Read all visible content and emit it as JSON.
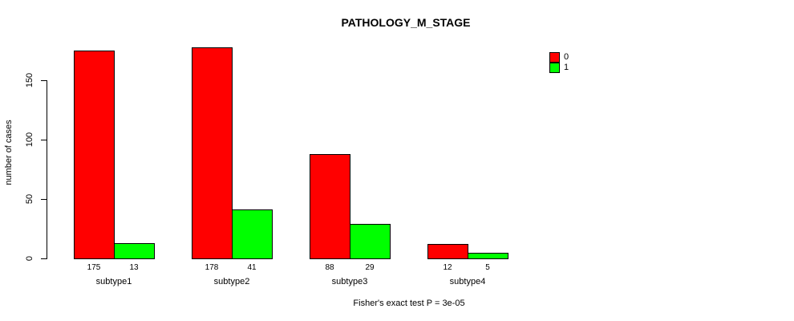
{
  "chart_data": {
    "type": "bar",
    "title": "PATHOLOGY_M_STAGE",
    "xlabel": "",
    "ylabel": "number of cases",
    "categories": [
      "subtype1",
      "subtype2",
      "subtype3",
      "subtype4"
    ],
    "series": [
      {
        "name": "0",
        "color": "#ff0000",
        "values": [
          175,
          178,
          88,
          12
        ]
      },
      {
        "name": "1",
        "color": "#00ff00",
        "values": [
          13,
          41,
          29,
          5
        ]
      }
    ],
    "yticks": [
      0,
      50,
      100,
      150
    ],
    "ylim": [
      0,
      180
    ],
    "grid": false,
    "value_labels_shown": true,
    "legend_position": "top-right",
    "annotation": "Fisher's exact test P = 3e-05"
  }
}
